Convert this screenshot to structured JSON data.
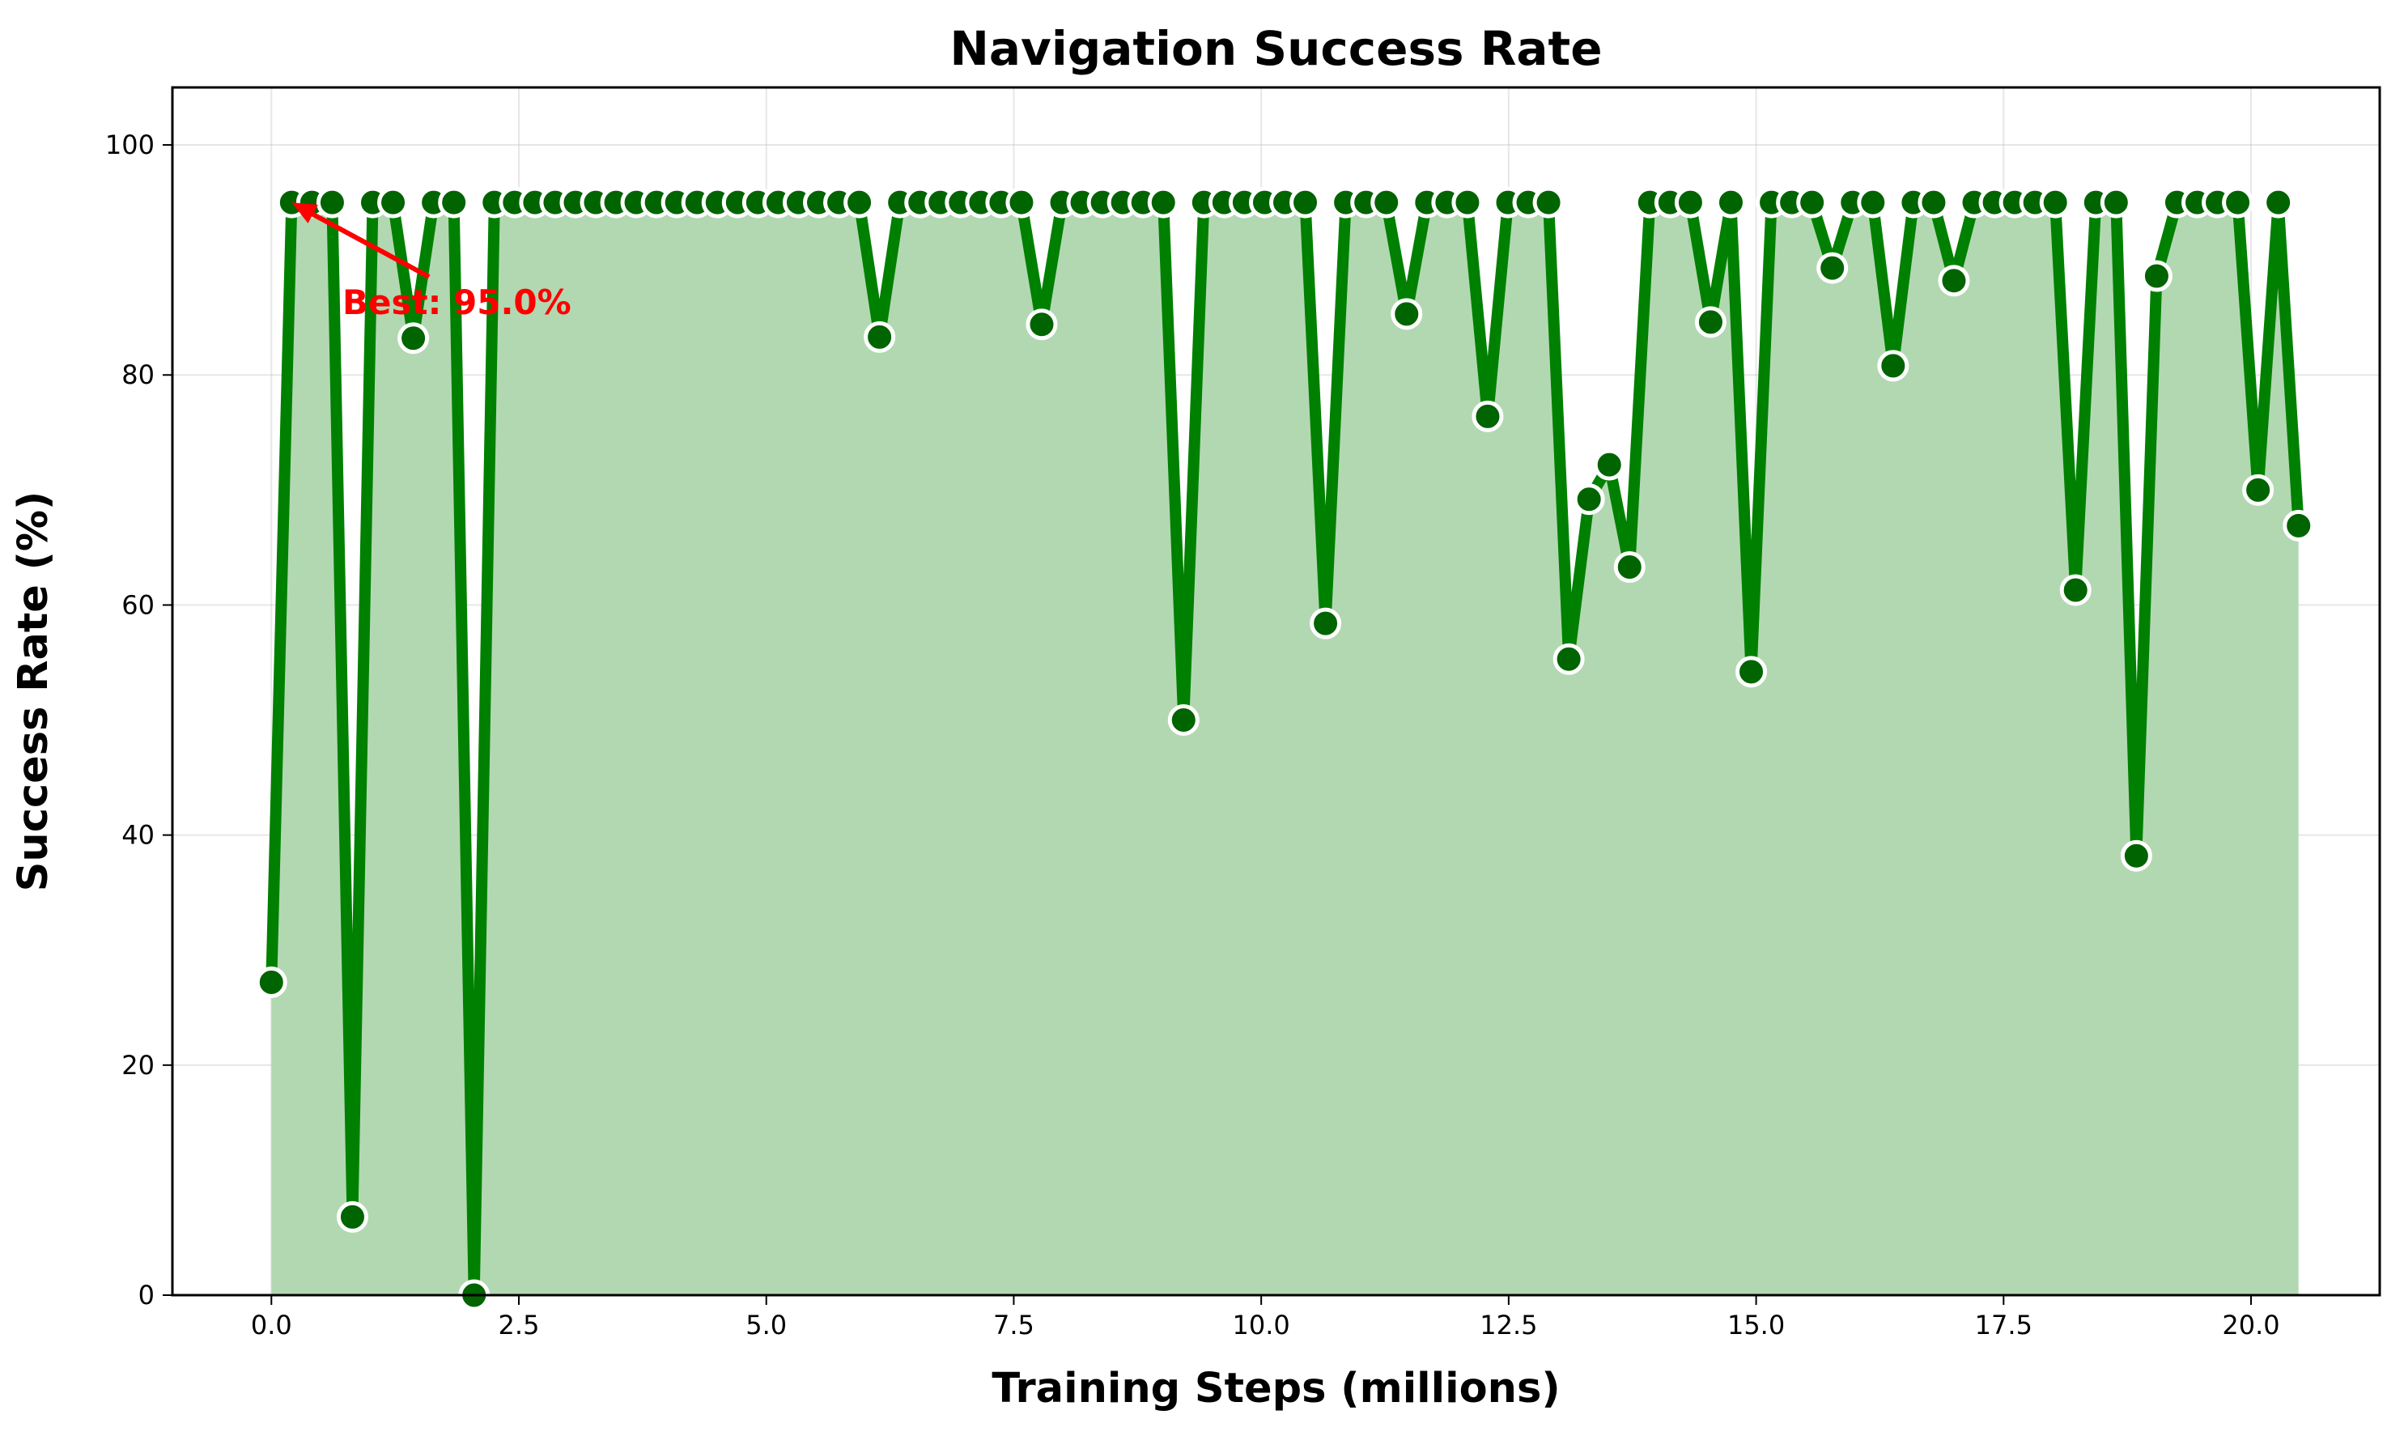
{
  "chart_data": {
    "type": "area",
    "title": "Navigation Success Rate",
    "xlabel": "Training Steps (millions)",
    "ylabel": "Success Rate (%)",
    "xlim": [
      -1.0,
      21.3
    ],
    "ylim": [
      0,
      105
    ],
    "xticks": [
      0.0,
      2.5,
      5.0,
      7.5,
      10.0,
      12.5,
      15.0,
      17.5,
      20.0
    ],
    "xtick_labels": [
      "0.0",
      "2.5",
      "5.0",
      "7.5",
      "10.0",
      "12.5",
      "15.0",
      "17.5",
      "20.0"
    ],
    "yticks": [
      0,
      20,
      40,
      60,
      80,
      100
    ],
    "ytick_labels": [
      "0",
      "20",
      "40",
      "60",
      "80",
      "100"
    ],
    "grid": true,
    "colors": {
      "line": "#008000",
      "fill": "#b2d8b2",
      "marker_face": "#006400",
      "marker_edge": "#ffffff",
      "annotation": "#ff0000"
    },
    "x_step": 0.2048,
    "values": [
      27.2,
      95,
      95,
      95,
      6.8,
      95,
      95,
      83.2,
      95,
      95,
      0,
      95,
      95,
      95,
      95,
      95,
      95,
      95,
      95,
      95,
      95,
      95,
      95,
      95,
      95,
      95,
      95,
      95,
      95,
      95,
      83.3,
      95,
      95,
      95,
      95,
      95,
      95,
      95,
      84.4,
      95,
      95,
      95,
      95,
      95,
      95,
      50.0,
      95,
      95,
      95,
      95,
      95,
      95,
      58.4,
      95,
      95,
      95,
      85.3,
      95,
      95,
      95,
      76.4,
      95,
      95,
      95,
      55.3,
      69.2,
      72.2,
      63.3,
      95,
      95,
      95,
      84.6,
      95,
      54.2,
      95,
      95,
      95,
      89.3,
      95,
      95,
      80.8,
      95,
      95,
      88.2,
      95,
      95,
      95,
      95,
      95,
      61.3,
      95,
      95,
      38.2,
      88.6,
      95,
      95,
      95,
      95,
      70.0,
      95,
      66.9
    ],
    "annotation": {
      "text": "Best: 95.0%",
      "target_x": 0.2048,
      "target_y": 95.0
    }
  }
}
